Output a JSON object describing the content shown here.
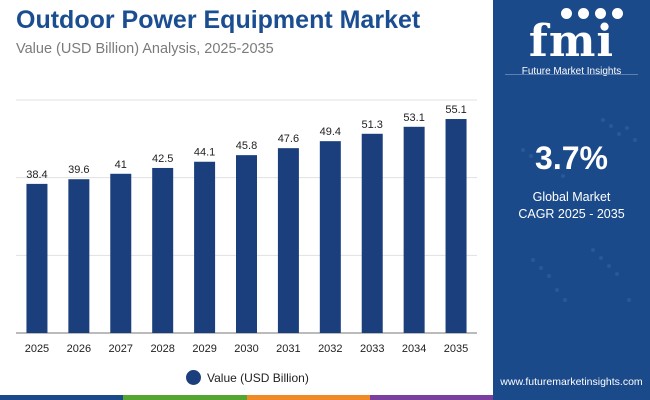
{
  "header": {
    "title": "Outdoor Power Equipment Market",
    "subtitle": "Value (USD Billion) Analysis, 2025-2035"
  },
  "chart_data": {
    "type": "bar",
    "title": "Outdoor Power Equipment Market",
    "subtitle": "Value (USD Billion) Analysis, 2025-2035",
    "categories": [
      "2025",
      "2026",
      "2027",
      "2028",
      "2029",
      "2030",
      "2031",
      "2032",
      "2033",
      "2034",
      "2035"
    ],
    "values": [
      38.4,
      39.6,
      41,
      42.5,
      44.1,
      45.8,
      47.6,
      49.4,
      51.3,
      53.1,
      55.1
    ],
    "value_labels": [
      "38.4",
      "39.6",
      "41",
      "42.5",
      "44.1",
      "45.8",
      "47.6",
      "49.4",
      "51.3",
      "53.1",
      "55.1"
    ],
    "series_name": "Value (USD Billion)",
    "xlabel": "",
    "ylabel": "",
    "ylim": [
      0,
      60
    ],
    "grid": true,
    "legend_position": "bottom-center",
    "bar_color": "#1b3f7c"
  },
  "legend": {
    "label": "Value (USD Billion)"
  },
  "side_panel": {
    "logo_text": "fmi",
    "logo_tagline": "Future Market Insights",
    "cagr_value": "3.7%",
    "cagr_label_line1": "Global Market",
    "cagr_label_line2": "CAGR 2025 - 2035",
    "website": "www.futuremarketinsights.com"
  },
  "colors": {
    "brand_blue": "#1b4a8b",
    "title_blue": "#1a4e91",
    "bar": "#1b3f7c",
    "bottom_strip": [
      "#1b4a8b",
      "#55a630",
      "#f08a24",
      "#7b3fa0"
    ]
  },
  "icons": [
    "globe-icon",
    "leaf-icon",
    "gear-icon",
    "person-icon"
  ]
}
